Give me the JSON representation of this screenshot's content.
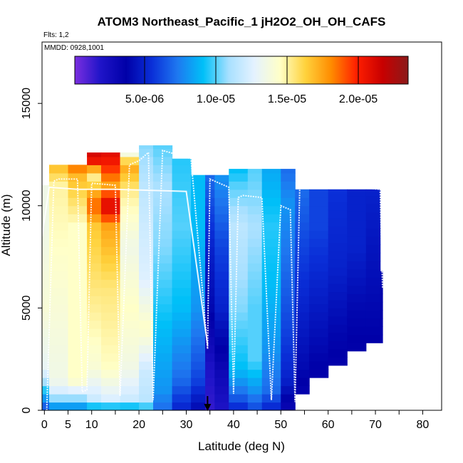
{
  "chart_data": {
    "type": "heatmap",
    "title": "ATOM3 Northeast_Pacific_1 jH2O2_OH_OH_CAFS",
    "subtitle_flights": "Flts: 1,2",
    "subtitle_dates": "MMDD: 0928,1001",
    "xlabel": "Latitude (deg N)",
    "ylabel": "Altitude (m)",
    "xlim": [
      -0.5,
      84
    ],
    "ylim": [
      0,
      18000
    ],
    "x_ticks": [
      0,
      5,
      10,
      20,
      30,
      40,
      50,
      60,
      70,
      80
    ],
    "x_minor_ticks": [
      15,
      25,
      35,
      45,
      55,
      65,
      75,
      85
    ],
    "y_ticks": [
      0,
      5000,
      10000,
      15000
    ],
    "colorbar": {
      "range": [
        1e-07,
        2.35e-05
      ],
      "tick_values": [
        5e-06,
        1e-05,
        1.5e-05,
        2e-05
      ],
      "tick_labels": [
        "5.0e-06",
        "1.0e-05",
        "1.5e-05",
        "2.0e-05"
      ],
      "colors": [
        "#7b2fe0",
        "#1f14c8",
        "#0000a8",
        "#0a2fd8",
        "#1e78f0",
        "#00c0f8",
        "#a8e0ff",
        "#e4f2ff",
        "#ffffc8",
        "#ffd23c",
        "#ff8c00",
        "#ff1e00",
        "#c80000",
        "#8b1a1a"
      ]
    },
    "marker": {
      "latitude": 34.5,
      "label": "arrow"
    },
    "colors": {
      "line": "#ffffff",
      "axis": "#000000"
    },
    "columns": [
      {
        "x0": -0.5,
        "x1": 1,
        "top": 11000,
        "values": [
          [
            0,
            6e-06
          ],
          [
            2000,
            1.3e-05
          ],
          [
            5000,
            1.4e-05
          ],
          [
            9000,
            1.35e-05
          ]
        ]
      },
      {
        "x0": 1,
        "x1": 5,
        "top": 12000,
        "values": [
          [
            0,
            7e-06
          ],
          [
            800,
            1.2e-05
          ],
          [
            1500,
            1.35e-05
          ],
          [
            5000,
            1.4e-05
          ],
          [
            11000,
            1.5e-05
          ],
          [
            12000,
            1.7e-05
          ]
        ]
      },
      {
        "x0": 5,
        "x1": 9,
        "top": 12000,
        "values": [
          [
            0,
            7e-06
          ],
          [
            800,
            1.2e-05
          ],
          [
            1500,
            1.45e-05
          ],
          [
            6000,
            1.45e-05
          ],
          [
            9000,
            1.45e-05
          ],
          [
            11500,
            1.7e-05
          ],
          [
            12000,
            1.9e-05
          ]
        ]
      },
      {
        "x0": 9,
        "x1": 12,
        "top": 12600,
        "values": [
          [
            0,
            8e-06
          ],
          [
            600,
            1.2e-05
          ],
          [
            2000,
            1.4e-05
          ],
          [
            6000,
            1.55e-05
          ],
          [
            9000,
            1.65e-05
          ],
          [
            10000,
            1.9e-05
          ],
          [
            11500,
            1.5e-05
          ],
          [
            12200,
            2.05e-05
          ],
          [
            12600,
            2.15e-05
          ]
        ]
      },
      {
        "x0": 12,
        "x1": 16,
        "top": 12600,
        "values": [
          [
            0,
            8e-06
          ],
          [
            600,
            1.25e-05
          ],
          [
            2000,
            1.45e-05
          ],
          [
            6000,
            1.55e-05
          ],
          [
            9000,
            1.75e-05
          ],
          [
            10000,
            2.15e-05
          ],
          [
            11000,
            1.75e-05
          ],
          [
            12000,
            2e-05
          ],
          [
            12600,
            2.1e-05
          ]
        ]
      },
      {
        "x0": 16,
        "x1": 20,
        "top": 12600,
        "values": [
          [
            0,
            8e-06
          ],
          [
            600,
            1.2e-05
          ],
          [
            2000,
            1.35e-05
          ],
          [
            5000,
            1.45e-05
          ],
          [
            8000,
            1.35e-05
          ],
          [
            10500,
            1.5e-05
          ],
          [
            12000,
            1.75e-05
          ],
          [
            12600,
            1.3e-05
          ]
        ]
      },
      {
        "x0": 20,
        "x1": 23,
        "top": 12950,
        "values": [
          [
            0,
            9e-06
          ],
          [
            600,
            1.15e-05
          ],
          [
            2000,
            1.2e-05
          ],
          [
            4000,
            1.45e-05
          ],
          [
            6500,
            1.25e-05
          ],
          [
            9000,
            1.2e-05
          ],
          [
            11000,
            1.15e-05
          ],
          [
            12950,
            1.05e-05
          ]
        ]
      },
      {
        "x0": 23,
        "x1": 27,
        "top": 12950,
        "values": [
          [
            0,
            7e-06
          ],
          [
            1000,
            8e-06
          ],
          [
            4000,
            9e-06
          ],
          [
            8000,
            1.05e-05
          ],
          [
            11000,
            1.1e-05
          ],
          [
            12950,
            1e-05
          ]
        ]
      },
      {
        "x0": 27,
        "x1": 31,
        "top": 12300,
        "values": [
          [
            0,
            5e-06
          ],
          [
            1500,
            7e-06
          ],
          [
            5000,
            9e-06
          ],
          [
            9000,
            1e-05
          ],
          [
            12300,
            9.5e-06
          ]
        ]
      },
      {
        "x0": 31,
        "x1": 34,
        "top": 11500,
        "values": [
          [
            0,
            4e-06
          ],
          [
            1500,
            6e-06
          ],
          [
            5000,
            8e-06
          ],
          [
            9000,
            9e-06
          ],
          [
            11500,
            9e-06
          ]
        ]
      },
      {
        "x0": 34,
        "x1": 36,
        "top": 11500,
        "values": [
          [
            0,
            1.5e-06
          ],
          [
            2000,
            2e-06
          ],
          [
            5000,
            4e-06
          ],
          [
            8000,
            5e-06
          ],
          [
            11500,
            7e-06
          ]
        ]
      },
      {
        "x0": 36,
        "x1": 39,
        "top": 11500,
        "values": [
          [
            0,
            2e-06
          ],
          [
            2000,
            3e-06
          ],
          [
            5000,
            5e-06
          ],
          [
            8000,
            6e-06
          ],
          [
            11500,
            8e-06
          ]
        ]
      },
      {
        "x0": 39,
        "x1": 43,
        "top": 11800,
        "values": [
          [
            0,
            5e-06
          ],
          [
            800,
            7e-06
          ],
          [
            2000,
            9e-06
          ],
          [
            5000,
            1.05e-05
          ],
          [
            9000,
            1.15e-05
          ],
          [
            11000,
            1e-05
          ],
          [
            11800,
            9e-06
          ]
        ]
      },
      {
        "x0": 43,
        "x1": 46,
        "top": 11800,
        "values": [
          [
            0,
            6e-06
          ],
          [
            1000,
            8e-06
          ],
          [
            2500,
            1e-05
          ],
          [
            5000,
            1e-05
          ],
          [
            9000,
            1.1e-05
          ],
          [
            11800,
            1e-05
          ]
        ]
      },
      {
        "x0": 46,
        "x1": 50,
        "top": 11800,
        "values": [
          [
            0,
            5e-06
          ],
          [
            1000,
            7e-06
          ],
          [
            3000,
            8e-06
          ],
          [
            6000,
            9e-06
          ],
          [
            9000,
            9.5e-06
          ],
          [
            11800,
            8.5e-06
          ]
        ]
      },
      {
        "x0": 50,
        "x1": 53,
        "top": 11800,
        "values": [
          [
            0,
            3e-06
          ],
          [
            1500,
            5e-06
          ],
          [
            4000,
            6e-06
          ],
          [
            7000,
            7e-06
          ],
          [
            10000,
            8e-06
          ],
          [
            11800,
            7e-06
          ]
        ]
      },
      {
        "x0": 53,
        "x1": 56,
        "top": 10800,
        "bottom": 800,
        "values": [
          [
            0,
            3e-06
          ],
          [
            2000,
            4e-06
          ],
          [
            5000,
            5e-06
          ],
          [
            8000,
            6e-06
          ],
          [
            10800,
            7e-06
          ]
        ]
      },
      {
        "x0": 56,
        "x1": 60,
        "top": 10800,
        "bottom": 1600,
        "values": [
          [
            0,
            3e-06
          ],
          [
            3000,
            4e-06
          ],
          [
            6000,
            5e-06
          ],
          [
            9000,
            6e-06
          ],
          [
            10800,
            6e-06
          ]
        ]
      },
      {
        "x0": 60,
        "x1": 64,
        "top": 10800,
        "bottom": 2200,
        "values": [
          [
            0,
            3e-06
          ],
          [
            4000,
            4e-06
          ],
          [
            7000,
            5e-06
          ],
          [
            10800,
            5.5e-06
          ]
        ]
      },
      {
        "x0": 64,
        "x1": 68,
        "top": 10800,
        "bottom": 2900,
        "values": [
          [
            0,
            3e-06
          ],
          [
            5000,
            4e-06
          ],
          [
            8000,
            5e-06
          ],
          [
            10800,
            5e-06
          ]
        ]
      },
      {
        "x0": 68,
        "x1": 71,
        "top": 10800,
        "bottom": 3300,
        "values": [
          [
            0,
            3e-06
          ],
          [
            5000,
            4e-06
          ],
          [
            8000,
            4.5e-06
          ],
          [
            10800,
            5e-06
          ]
        ]
      },
      {
        "x0": 71,
        "x1": 71.5,
        "top": 6800,
        "bottom": 3300,
        "values": [
          [
            0,
            3e-06
          ],
          [
            6800,
            4e-06
          ]
        ]
      }
    ],
    "flight_track": [
      [
        0.5,
        0
      ],
      [
        2,
        11200
      ],
      [
        3,
        11300
      ],
      [
        7,
        11300
      ],
      [
        8,
        900
      ],
      [
        9,
        1000
      ],
      [
        10,
        11100
      ],
      [
        15,
        11000
      ],
      [
        16,
        700
      ],
      [
        18,
        12000
      ],
      [
        20,
        12200
      ],
      [
        22,
        12600
      ],
      [
        23,
        500
      ],
      [
        25,
        12700
      ],
      [
        31,
        12300
      ],
      [
        34.5,
        3000
      ],
      [
        35,
        11300
      ],
      [
        39,
        10900
      ],
      [
        40,
        800
      ],
      [
        41,
        10400
      ],
      [
        42,
        10500
      ],
      [
        46,
        10400
      ],
      [
        48,
        500
      ],
      [
        50,
        10000
      ],
      [
        52,
        9800
      ],
      [
        53,
        400
      ],
      [
        54,
        10900
      ],
      [
        58,
        11100
      ],
      [
        71,
        10800
      ],
      [
        71.5,
        6000
      ]
    ],
    "flight_track_2": [
      [
        -0.5,
        8500
      ],
      [
        1,
        10900
      ],
      [
        7,
        10800
      ],
      [
        12,
        10800
      ],
      [
        15,
        10800
      ],
      [
        30,
        10700
      ],
      [
        34.5,
        3200
      ]
    ]
  }
}
